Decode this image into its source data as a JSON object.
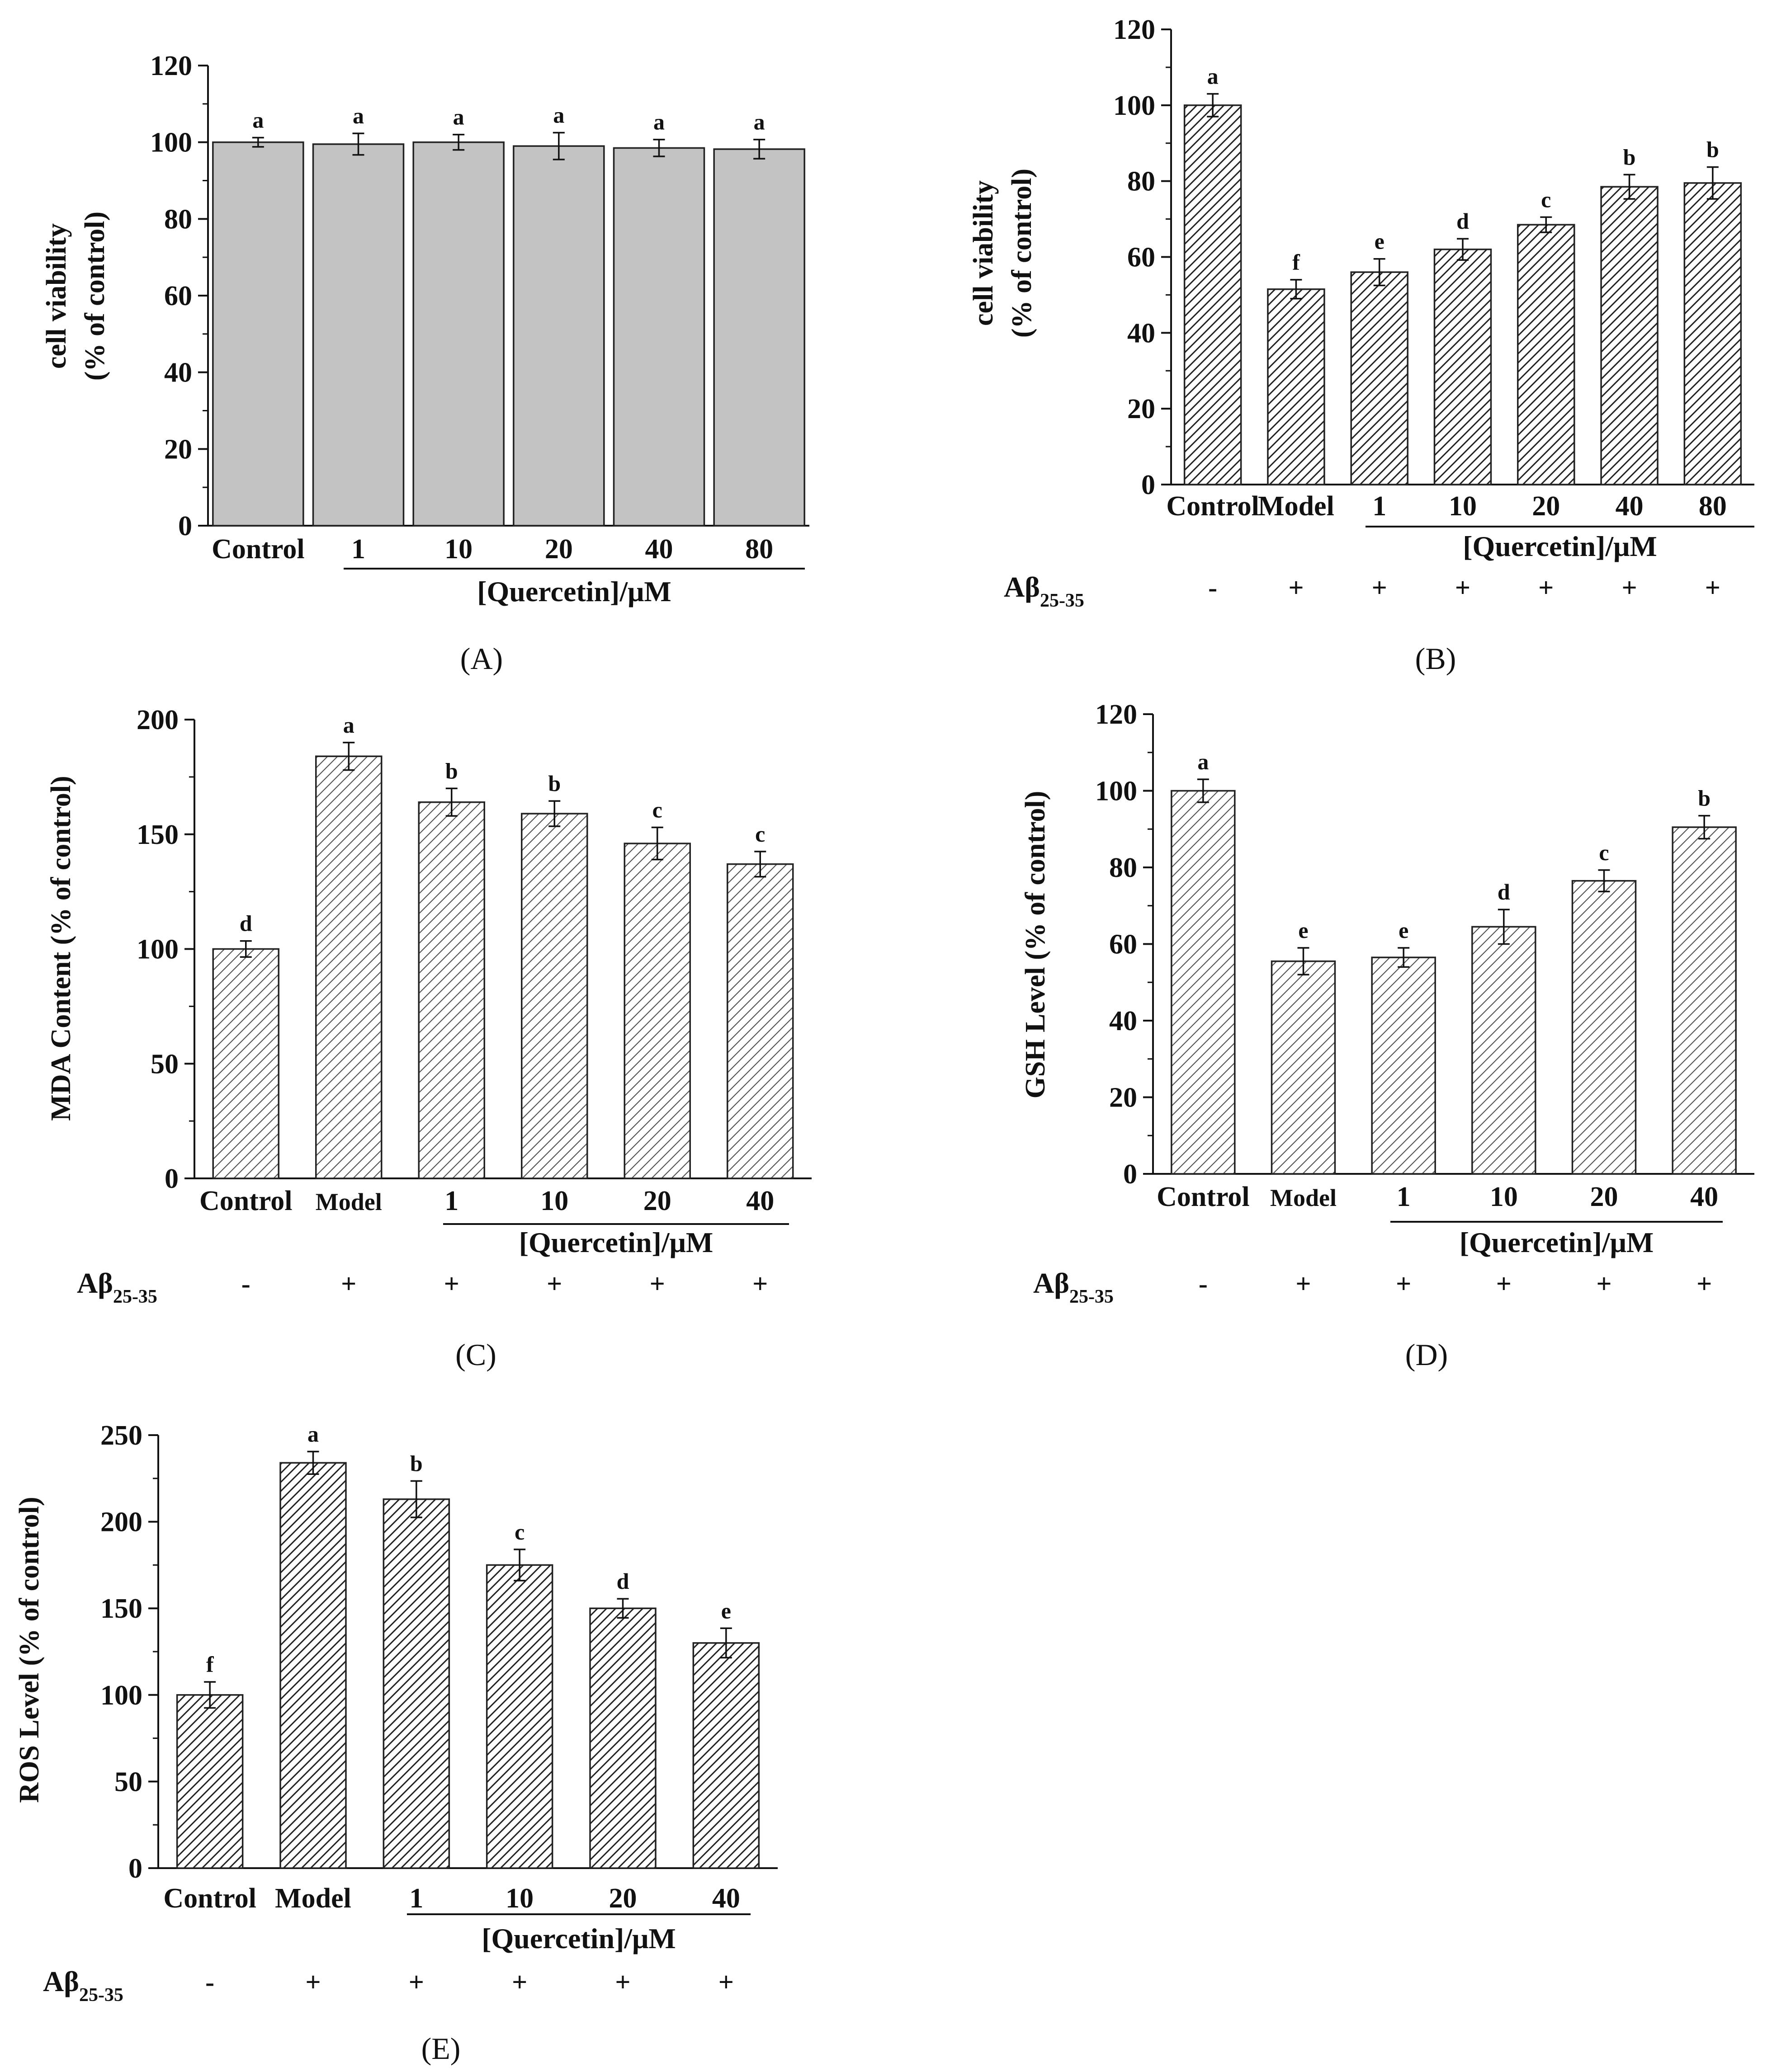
{
  "figure": {
    "panels": [
      {
        "id": "A",
        "panel_label": "(A)",
        "chart_data": {
          "type": "bar",
          "categories": [
            "Control",
            "1",
            "10",
            "20",
            "40",
            "80"
          ],
          "values": [
            100,
            99.5,
            100,
            99,
            98.5,
            98.2
          ],
          "errors": [
            1.2,
            2.8,
            2.0,
            3.5,
            2.2,
            2.5
          ],
          "significance": [
            "a",
            "a",
            "a",
            "a",
            "a",
            "a"
          ],
          "ylabel_lines": [
            "cell viability",
            "(% of control)"
          ],
          "ylim": [
            0,
            120
          ],
          "yticks": [
            "0",
            "20",
            "40",
            "60",
            "80",
            "100",
            "120"
          ],
          "group_label": "[Quercetin]/μM",
          "fill": "solid",
          "abeta": null
        }
      },
      {
        "id": "B",
        "panel_label": "(B)",
        "chart_data": {
          "type": "bar",
          "categories": [
            "Control",
            "Model",
            "1",
            "10",
            "20",
            "40",
            "80"
          ],
          "values": [
            100,
            51.5,
            56,
            62,
            68.5,
            78.5,
            79.5
          ],
          "errors": [
            3.0,
            2.5,
            3.5,
            2.8,
            2.0,
            3.2,
            4.2
          ],
          "significance": [
            "a",
            "f",
            "e",
            "d",
            "c",
            "b",
            "b"
          ],
          "ylabel_lines": [
            "cell viability",
            "(% of control)"
          ],
          "ylim": [
            0,
            120
          ],
          "yticks": [
            "0",
            "20",
            "40",
            "60",
            "80",
            "100",
            "120"
          ],
          "group_label": "[Quercetin]/μM",
          "fill": "hatch-dense",
          "abeta": {
            "label": "Aβ",
            "sub": "25-35",
            "signs": [
              "-",
              "+",
              "+",
              "+",
              "+",
              "+",
              "+"
            ]
          }
        }
      },
      {
        "id": "C",
        "panel_label": "(C)",
        "chart_data": {
          "type": "bar",
          "categories": [
            "Control",
            "Model",
            "1",
            "10",
            "20",
            "40"
          ],
          "values": [
            100,
            184,
            164,
            159,
            146,
            137
          ],
          "errors": [
            3.5,
            6.0,
            6.0,
            5.5,
            7.0,
            5.5
          ],
          "significance": [
            "d",
            "a",
            "b",
            "b",
            "c",
            "c"
          ],
          "ylabel_lines": [
            "MDA Content (% of control)"
          ],
          "ylim": [
            0,
            200
          ],
          "yticks": [
            "0",
            "50",
            "100",
            "150",
            "200"
          ],
          "group_label": "[Quercetin]/μM",
          "fill": "hatch-light",
          "abeta": {
            "label": "Aβ",
            "sub": "25-35",
            "signs": [
              "-",
              "+",
              "+",
              "+",
              "+",
              "+"
            ]
          }
        }
      },
      {
        "id": "D",
        "panel_label": "(D)",
        "chart_data": {
          "type": "bar",
          "categories": [
            "Control",
            "Model",
            "1",
            "10",
            "20",
            "40"
          ],
          "values": [
            100,
            55.5,
            56.5,
            64.5,
            76.5,
            90.5
          ],
          "errors": [
            3.0,
            3.5,
            2.5,
            4.5,
            2.8,
            3.0
          ],
          "significance": [
            "a",
            "e",
            "e",
            "d",
            "c",
            "b"
          ],
          "ylabel_lines": [
            "GSH Level (% of control)"
          ],
          "ylim": [
            0,
            120
          ],
          "yticks": [
            "0",
            "20",
            "40",
            "60",
            "80",
            "100",
            "120"
          ],
          "group_label": "[Quercetin]/μM",
          "fill": "hatch-light",
          "abeta": {
            "label": "Aβ",
            "sub": "25-35",
            "signs": [
              "-",
              "+",
              "+",
              "+",
              "+",
              "+"
            ]
          }
        }
      },
      {
        "id": "E",
        "panel_label": "(E)",
        "chart_data": {
          "type": "bar",
          "categories": [
            "Control",
            "Model",
            "1",
            "10",
            "20",
            "40"
          ],
          "values": [
            100,
            234,
            213,
            175,
            150,
            130
          ],
          "errors": [
            7.5,
            6.5,
            10.5,
            9.0,
            5.5,
            8.5
          ],
          "significance": [
            "f",
            "a",
            "b",
            "c",
            "d",
            "e"
          ],
          "ylabel_lines": [
            "ROS Level (% of control)"
          ],
          "ylim": [
            0,
            250
          ],
          "yticks": [
            "0",
            "50",
            "100",
            "150",
            "200",
            "250"
          ],
          "group_label": "[Quercetin]/μM",
          "fill": "hatch-dense",
          "abeta": {
            "label": "Aβ",
            "sub": "25-35",
            "signs": [
              "-",
              "+",
              "+",
              "+",
              "+",
              "+"
            ]
          }
        }
      }
    ]
  }
}
